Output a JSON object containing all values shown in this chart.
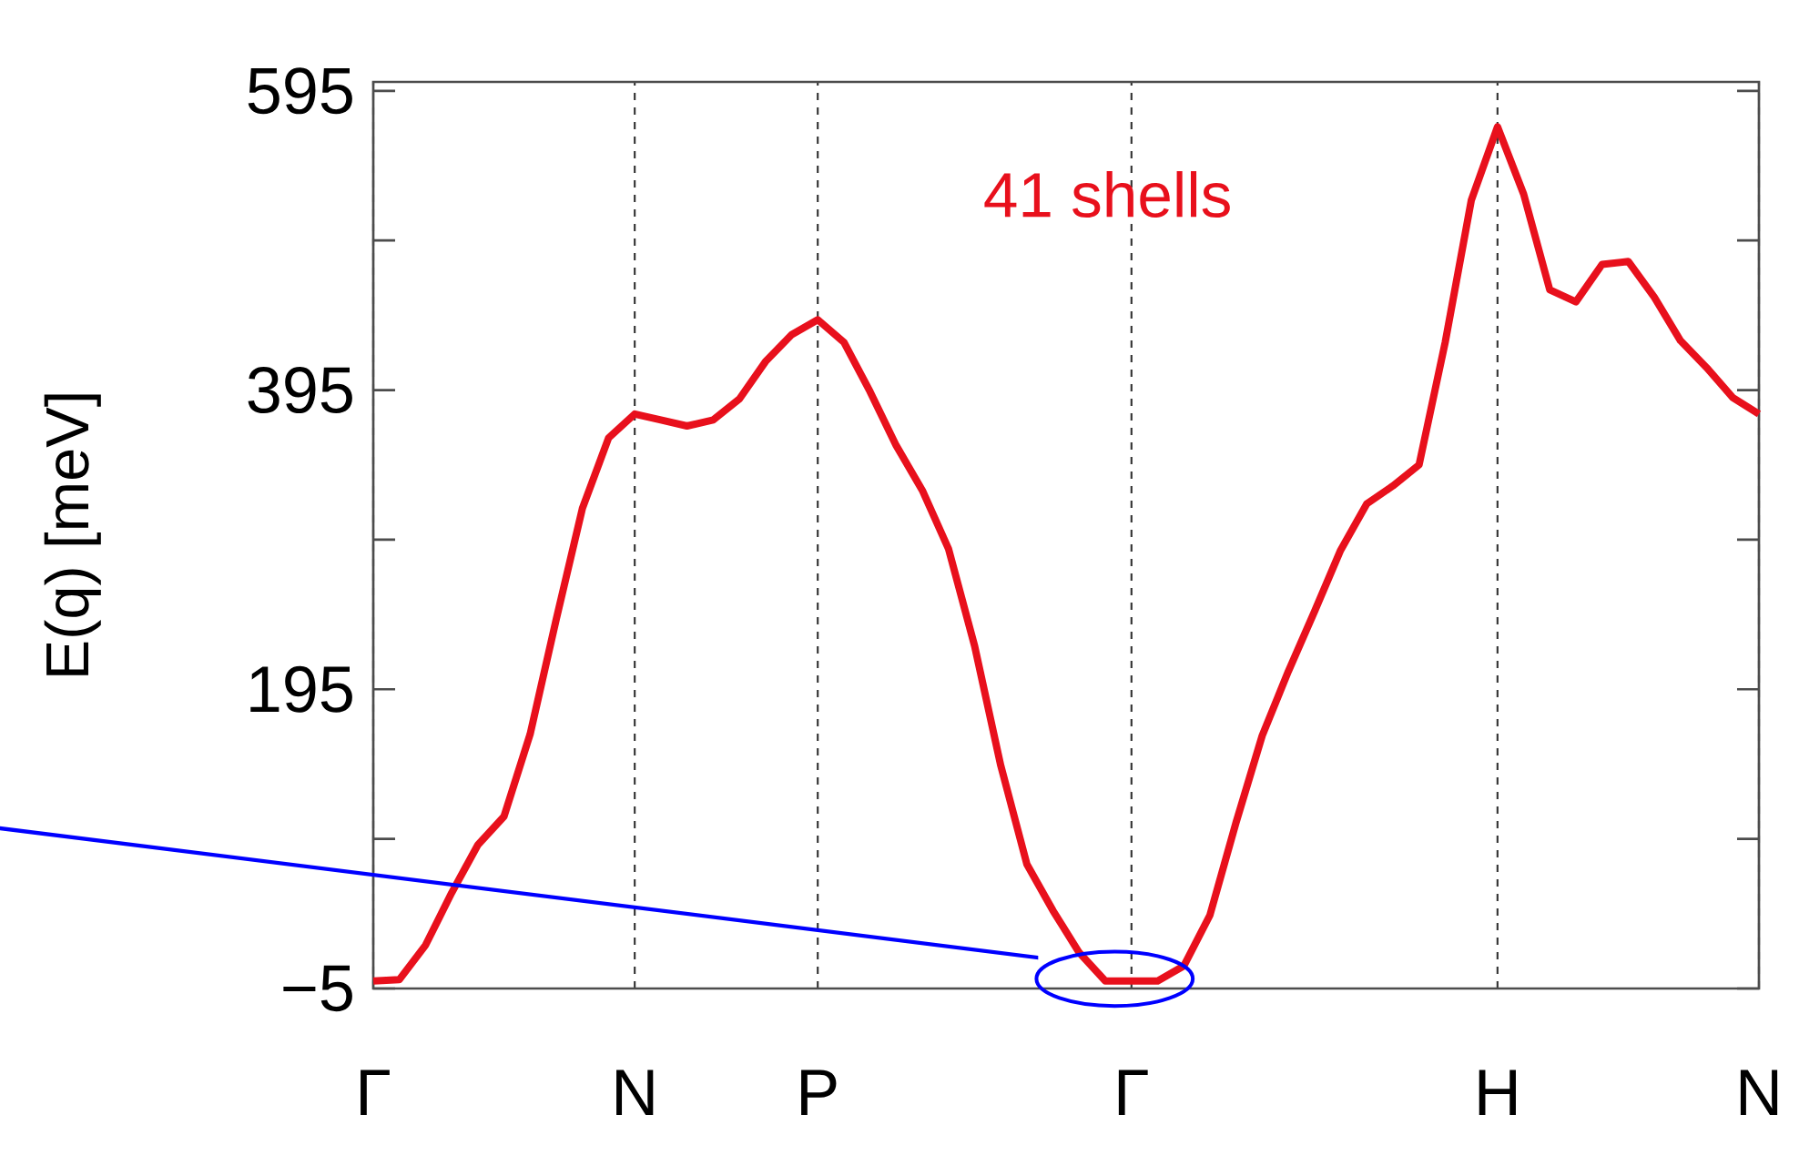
{
  "chart_data": {
    "type": "line",
    "ylabel": "E(q) [meV]",
    "annotations": [
      "41 shells"
    ],
    "categories": [
      "Γ",
      null,
      null,
      null,
      null,
      null,
      null,
      null,
      null,
      null,
      "N",
      null,
      null,
      null,
      null,
      null,
      null,
      "P",
      null,
      null,
      null,
      null,
      null,
      null,
      null,
      null,
      null,
      null,
      null,
      "Γ",
      null,
      null,
      null,
      null,
      null,
      null,
      null,
      null,
      null,
      null,
      null,
      null,
      null,
      "H",
      null,
      null,
      null,
      null,
      null,
      null,
      null,
      null,
      null,
      "N"
    ],
    "ylim": [
      -5,
      601
    ],
    "yticks": [
      {
        "value": -5,
        "label": "−5"
      },
      {
        "value": 95,
        "label": null
      },
      195,
      {
        "value": 295,
        "label": null
      },
      395,
      {
        "value": 495,
        "label": null
      },
      595
    ],
    "grid": "x",
    "legend": false,
    "marker": "none",
    "line_style": "solid",
    "series": [
      {
        "color": "#e8101c",
        "values": [
          0,
          1,
          24,
          59,
          91,
          110,
          165,
          242,
          316,
          363,
          379,
          375,
          371,
          375,
          389,
          414,
          432,
          442,
          427,
          394,
          358,
          328,
          289,
          224,
          144,
          78,
          47,
          19,
          0,
          0,
          0,
          10,
          44,
          106,
          164,
          207,
          247,
          288,
          319,
          331,
          345,
          427,
          522,
          571,
          526,
          462,
          454,
          479,
          481,
          457,
          428,
          410,
          390,
          379
        ]
      }
    ]
  }
}
